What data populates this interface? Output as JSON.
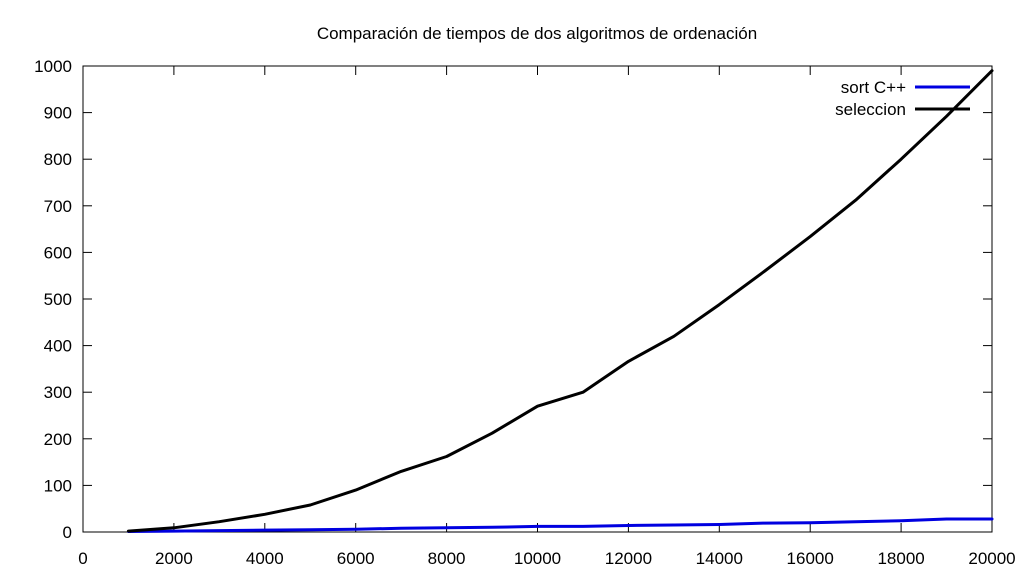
{
  "chart_data": {
    "type": "line",
    "title": "Comparación de tiempos de dos algoritmos de ordenación",
    "xlabel": "",
    "ylabel": "",
    "xlim": [
      0,
      20000
    ],
    "ylim": [
      0,
      1000
    ],
    "xticks": [
      0,
      2000,
      4000,
      6000,
      8000,
      10000,
      12000,
      14000,
      16000,
      18000,
      20000
    ],
    "yticks": [
      0,
      100,
      200,
      300,
      400,
      500,
      600,
      700,
      800,
      900,
      1000
    ],
    "grid": false,
    "legend_position": "top-right",
    "series": [
      {
        "name": "sort C++",
        "color": "#0000e0",
        "x": [
          1000,
          2000,
          3000,
          4000,
          5000,
          6000,
          7000,
          8000,
          9000,
          10000,
          11000,
          12000,
          13000,
          14000,
          15000,
          16000,
          17000,
          18000,
          19000,
          20000
        ],
        "y": [
          1,
          2,
          3,
          4,
          5,
          6,
          8,
          9,
          10,
          12,
          12,
          14,
          15,
          16,
          19,
          20,
          22,
          24,
          28,
          28
        ]
      },
      {
        "name": "seleccion",
        "color": "#000000",
        "x": [
          1000,
          2000,
          3000,
          4000,
          5000,
          6000,
          7000,
          8000,
          9000,
          10000,
          11000,
          12000,
          13000,
          14000,
          15000,
          16000,
          17000,
          18000,
          19000,
          20000
        ],
        "y": [
          2,
          9,
          22,
          38,
          58,
          90,
          130,
          162,
          212,
          270,
          300,
          366,
          420,
          488,
          560,
          634,
          712,
          800,
          892,
          990
        ]
      }
    ]
  }
}
